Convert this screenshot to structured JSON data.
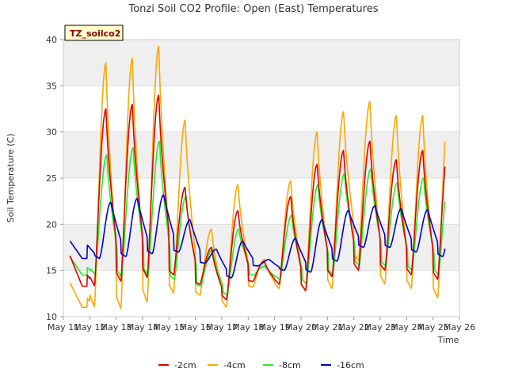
{
  "chart_data": {
    "type": "line",
    "title": "Tonzi Soil CO2 Profile: Open (East) Temperatures",
    "xlabel": "Time",
    "ylabel": "Soil Temperature (C)",
    "badge": "TZ_soilco2",
    "xlim": [
      11,
      26
    ],
    "ylim": [
      10,
      40
    ],
    "x_ticks": [
      11,
      12,
      13,
      14,
      15,
      16,
      17,
      18,
      19,
      20,
      21,
      22,
      23,
      24,
      25,
      26
    ],
    "x_tick_labels": [
      "May 11",
      "May 12",
      "May 13",
      "May 14",
      "May 15",
      "May 16",
      "May 17",
      "May 18",
      "May 19",
      "May 20",
      "May 21",
      "May 22",
      "May 23",
      "May 24",
      "May 25",
      "May 26"
    ],
    "y_ticks": [
      10,
      15,
      20,
      25,
      30,
      35,
      40
    ],
    "y_tick_labels": [
      "10",
      "15",
      "20",
      "25",
      "30",
      "35",
      "40"
    ],
    "grid": true,
    "legend_position": "bottom-center",
    "series": [
      {
        "name": "-2cm",
        "color": "#dd0000",
        "daily_min": [
          16.6,
          13.3,
          13.8,
          14.2,
          14.5,
          13.5,
          11.8,
          13.8,
          13.5,
          12.8,
          14.3,
          15.0,
          15.0,
          14.5,
          14.0,
          18.5
        ],
        "daily_max": [
          16.6,
          32.5,
          33.0,
          34.0,
          24.0,
          17.5,
          21.5,
          16.0,
          23.0,
          26.5,
          28.0,
          29.0,
          27.0,
          28.0,
          29.5,
          19.0
        ]
      },
      {
        "name": "-4cm",
        "color": "#ffa500",
        "daily_min": [
          13.7,
          11.0,
          10.8,
          11.5,
          12.5,
          12.3,
          11.0,
          13.2,
          13.0,
          12.7,
          13.0,
          16.0,
          13.5,
          13.0,
          12.0,
          15.5
        ],
        "daily_max": [
          13.7,
          37.5,
          38.0,
          39.3,
          31.3,
          19.5,
          24.3,
          16.2,
          24.7,
          30.0,
          32.2,
          33.3,
          31.8,
          31.8,
          33.5,
          15.5
        ]
      },
      {
        "name": "-8cm",
        "color": "#22ee22",
        "daily_min": [
          16.5,
          14.5,
          14.3,
          14.5,
          14.0,
          13.3,
          12.3,
          14.5,
          14.0,
          13.5,
          14.5,
          15.5,
          15.5,
          15.0,
          14.5,
          17.5
        ],
        "daily_max": [
          16.5,
          27.5,
          28.3,
          29.0,
          23.0,
          17.3,
          19.5,
          15.5,
          21.0,
          24.3,
          25.5,
          26.0,
          24.5,
          25.0,
          25.7,
          18.0
        ]
      },
      {
        "name": "-16cm",
        "color": "#0000cc",
        "daily_min": [
          18.2,
          16.3,
          16.5,
          16.8,
          17.0,
          15.8,
          14.2,
          15.5,
          15.0,
          14.8,
          16.0,
          17.5,
          17.5,
          17.0,
          16.5,
          19.5
        ],
        "daily_max": [
          18.2,
          22.4,
          22.8,
          23.2,
          20.5,
          17.3,
          18.2,
          16.2,
          18.5,
          20.5,
          21.5,
          22.0,
          21.7,
          21.6,
          21.9,
          19.5
        ]
      }
    ]
  }
}
